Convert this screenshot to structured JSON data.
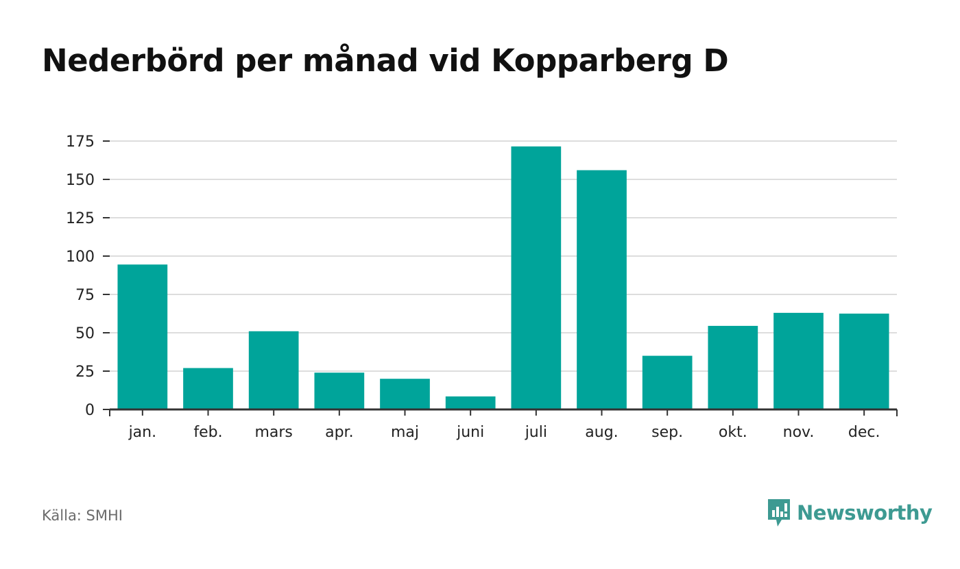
{
  "title": "Nederbörd per månad vid Kopparberg D",
  "source": "Källa: SMHI",
  "brand": {
    "name": "Newsworthy",
    "icon": "newsworthy-logo-icon",
    "color": "#3d9a92"
  },
  "colors": {
    "bar": "#00a49a",
    "grid": "#dddddd",
    "axis": "#333333"
  },
  "chart_data": {
    "type": "bar",
    "title": "Nederbörd per månad vid Kopparberg D",
    "xlabel": "",
    "ylabel": "",
    "categories": [
      "jan.",
      "feb.",
      "mars",
      "apr.",
      "maj",
      "juni",
      "juli",
      "aug.",
      "sep.",
      "okt.",
      "nov.",
      "dec."
    ],
    "values": [
      94.5,
      27,
      51,
      24,
      20,
      8.5,
      171.5,
      156,
      35,
      54.5,
      63,
      62.5
    ],
    "ylim": [
      0,
      175
    ],
    "yticks": [
      0,
      25,
      50,
      75,
      100,
      125,
      150,
      175
    ],
    "grid": true,
    "legend": "none"
  }
}
